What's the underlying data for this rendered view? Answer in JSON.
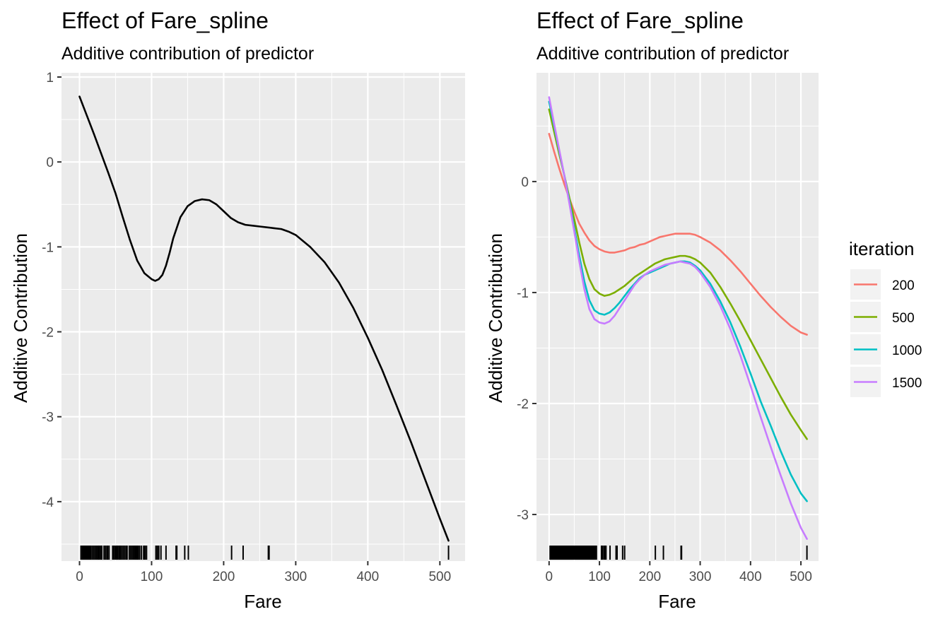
{
  "chart_data": [
    {
      "type": "line",
      "title": "Effect of Fare_spline",
      "subtitle": "Additive contribution of predictor",
      "xlabel": "Fare",
      "ylabel": "Additive Contribution",
      "xlim": [
        -25,
        535
      ],
      "ylim": [
        -4.7,
        1.05
      ],
      "xticks": [
        0,
        100,
        200,
        300,
        400,
        500
      ],
      "xtick_labels": [
        "0",
        "100",
        "200",
        "300",
        "400",
        "500"
      ],
      "yticks": [
        1,
        0,
        -1,
        -2,
        -3,
        -4
      ],
      "ytick_labels": [
        "1",
        "0",
        "-1",
        "-2",
        "-3",
        "-4"
      ],
      "grid": true,
      "series": [
        {
          "color": "#000000",
          "x": [
            0,
            10,
            20,
            30,
            40,
            50,
            60,
            70,
            80,
            90,
            100,
            105,
            110,
            115,
            120,
            125,
            130,
            140,
            150,
            160,
            170,
            180,
            190,
            200,
            210,
            220,
            230,
            240,
            250,
            260,
            270,
            280,
            290,
            300,
            320,
            340,
            360,
            380,
            400,
            420,
            440,
            460,
            480,
            500,
            512
          ],
          "y": [
            0.77,
            0.55,
            0.33,
            0.1,
            -0.13,
            -0.37,
            -0.65,
            -0.92,
            -1.16,
            -1.31,
            -1.38,
            -1.4,
            -1.38,
            -1.33,
            -1.22,
            -1.07,
            -0.9,
            -0.65,
            -0.52,
            -0.46,
            -0.44,
            -0.45,
            -0.5,
            -0.58,
            -0.66,
            -0.71,
            -0.74,
            -0.75,
            -0.76,
            -0.77,
            -0.78,
            -0.79,
            -0.82,
            -0.86,
            -1.0,
            -1.18,
            -1.42,
            -1.72,
            -2.07,
            -2.45,
            -2.87,
            -3.3,
            -3.75,
            -4.2,
            -4.46
          ]
        }
      ],
      "rug": [
        2,
        4,
        5,
        6,
        7,
        7.5,
        8,
        8.5,
        9,
        10,
        11,
        12,
        13,
        14,
        15,
        16,
        18,
        20,
        22,
        24,
        26,
        27,
        29,
        30,
        31,
        34,
        36,
        38,
        39,
        41,
        46,
        47,
        49,
        50,
        51,
        52,
        53,
        55,
        56,
        57,
        59,
        61,
        63,
        65,
        66,
        69,
        71,
        73,
        75,
        77,
        78,
        79,
        80,
        81,
        83,
        83.5,
        86,
        89,
        90,
        91,
        93,
        106,
        108,
        110,
        113,
        120,
        134,
        135,
        146,
        151,
        211,
        227,
        262,
        263,
        512
      ]
    },
    {
      "type": "line",
      "title": "Effect of Fare_spline",
      "subtitle": "Additive contribution of predictor",
      "xlabel": "Fare",
      "ylabel": "Additive Contribution",
      "xlim": [
        -25,
        535
      ],
      "ylim": [
        -3.42,
        0.98
      ],
      "xticks": [
        0,
        100,
        200,
        300,
        400,
        500
      ],
      "xtick_labels": [
        "0",
        "100",
        "200",
        "300",
        "400",
        "500"
      ],
      "yticks": [
        0,
        -1,
        -2,
        -3
      ],
      "ytick_labels": [
        "0",
        "-1",
        "-2",
        "-3"
      ],
      "grid": true,
      "legend": {
        "title": "iteration",
        "position": "right"
      },
      "series": [
        {
          "name": "200",
          "color": "#F8766D",
          "x": [
            0,
            10,
            20,
            30,
            40,
            50,
            60,
            70,
            80,
            90,
            100,
            110,
            120,
            130,
            140,
            150,
            160,
            170,
            180,
            190,
            200,
            210,
            220,
            230,
            240,
            250,
            260,
            270,
            280,
            290,
            300,
            320,
            340,
            360,
            380,
            400,
            420,
            440,
            460,
            480,
            500,
            512
          ],
          "y": [
            0.43,
            0.27,
            0.12,
            -0.02,
            -0.15,
            -0.27,
            -0.38,
            -0.46,
            -0.53,
            -0.58,
            -0.61,
            -0.63,
            -0.64,
            -0.64,
            -0.63,
            -0.62,
            -0.6,
            -0.59,
            -0.57,
            -0.56,
            -0.54,
            -0.52,
            -0.5,
            -0.49,
            -0.48,
            -0.47,
            -0.47,
            -0.47,
            -0.47,
            -0.48,
            -0.5,
            -0.55,
            -0.62,
            -0.71,
            -0.81,
            -0.92,
            -1.03,
            -1.13,
            -1.22,
            -1.3,
            -1.36,
            -1.38
          ]
        },
        {
          "name": "500",
          "color": "#7CAE00",
          "x": [
            0,
            10,
            20,
            30,
            40,
            50,
            60,
            70,
            80,
            90,
            100,
            110,
            120,
            130,
            140,
            150,
            160,
            170,
            180,
            190,
            200,
            210,
            220,
            230,
            240,
            250,
            260,
            270,
            280,
            290,
            300,
            320,
            340,
            360,
            380,
            400,
            420,
            440,
            460,
            480,
            500,
            512
          ],
          "y": [
            0.65,
            0.45,
            0.25,
            0.06,
            -0.14,
            -0.34,
            -0.55,
            -0.74,
            -0.88,
            -0.97,
            -1.01,
            -1.03,
            -1.02,
            -1.0,
            -0.97,
            -0.94,
            -0.9,
            -0.86,
            -0.83,
            -0.8,
            -0.77,
            -0.74,
            -0.72,
            -0.7,
            -0.69,
            -0.68,
            -0.67,
            -0.67,
            -0.68,
            -0.7,
            -0.73,
            -0.82,
            -0.95,
            -1.1,
            -1.26,
            -1.43,
            -1.6,
            -1.77,
            -1.94,
            -2.1,
            -2.24,
            -2.32
          ]
        },
        {
          "name": "1000",
          "color": "#00BFC4",
          "x": [
            0,
            10,
            20,
            30,
            40,
            50,
            60,
            70,
            80,
            90,
            100,
            110,
            120,
            130,
            140,
            150,
            160,
            170,
            180,
            190,
            200,
            210,
            220,
            230,
            240,
            250,
            260,
            270,
            280,
            290,
            300,
            320,
            340,
            360,
            380,
            400,
            420,
            440,
            460,
            480,
            500,
            512
          ],
          "y": [
            0.72,
            0.5,
            0.28,
            0.06,
            -0.17,
            -0.42,
            -0.67,
            -0.9,
            -1.07,
            -1.16,
            -1.19,
            -1.2,
            -1.18,
            -1.14,
            -1.09,
            -1.03,
            -0.97,
            -0.92,
            -0.87,
            -0.84,
            -0.82,
            -0.8,
            -0.78,
            -0.76,
            -0.74,
            -0.73,
            -0.72,
            -0.72,
            -0.73,
            -0.76,
            -0.8,
            -0.92,
            -1.08,
            -1.27,
            -1.49,
            -1.73,
            -1.98,
            -2.2,
            -2.43,
            -2.64,
            -2.81,
            -2.88
          ]
        },
        {
          "name": "1500",
          "color": "#C77CFF",
          "x": [
            0,
            10,
            20,
            30,
            40,
            50,
            60,
            70,
            80,
            90,
            100,
            110,
            120,
            130,
            140,
            150,
            160,
            170,
            180,
            190,
            200,
            210,
            220,
            230,
            240,
            250,
            260,
            270,
            280,
            290,
            300,
            320,
            340,
            360,
            380,
            400,
            420,
            440,
            460,
            480,
            500,
            512
          ],
          "y": [
            0.76,
            0.52,
            0.29,
            0.06,
            -0.19,
            -0.45,
            -0.72,
            -0.97,
            -1.15,
            -1.24,
            -1.27,
            -1.28,
            -1.26,
            -1.21,
            -1.14,
            -1.07,
            -1.0,
            -0.93,
            -0.88,
            -0.84,
            -0.81,
            -0.79,
            -0.77,
            -0.75,
            -0.74,
            -0.73,
            -0.72,
            -0.73,
            -0.74,
            -0.77,
            -0.82,
            -0.95,
            -1.12,
            -1.33,
            -1.57,
            -1.84,
            -2.12,
            -2.39,
            -2.65,
            -2.9,
            -3.12,
            -3.22
          ]
        }
      ],
      "rug": [
        2,
        4,
        6,
        8,
        9,
        10,
        12,
        14,
        16,
        18,
        20,
        22,
        24,
        26,
        28,
        30,
        32,
        34,
        36,
        38,
        40,
        42,
        44,
        46,
        48,
        50,
        52,
        54,
        56,
        58,
        60,
        62,
        64,
        66,
        68,
        70,
        72,
        74,
        76,
        78,
        80,
        82,
        84,
        86,
        88,
        90,
        92,
        94,
        104,
        106,
        109,
        111,
        113,
        121,
        133,
        135,
        146,
        150,
        211,
        227,
        262,
        263,
        512
      ]
    }
  ]
}
